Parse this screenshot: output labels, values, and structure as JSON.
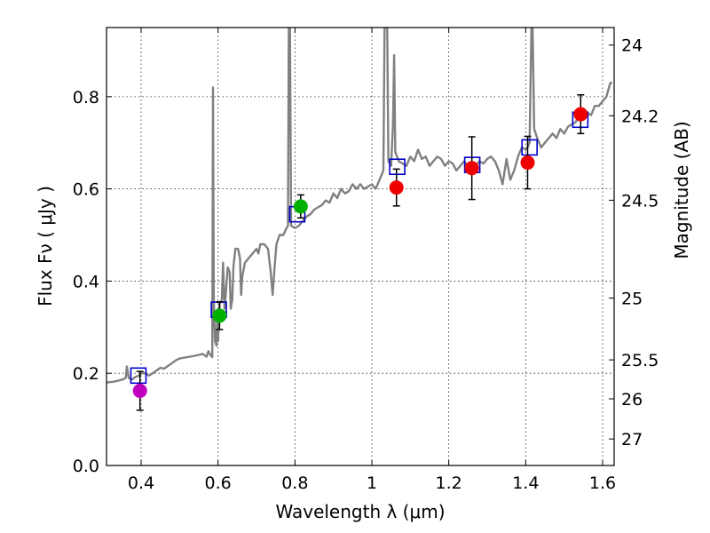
{
  "chart_data": {
    "type": "scatter",
    "xlabel": "Wavelength  λ (μm)",
    "ylabel": "Flux  Fν  ( μJy )",
    "y2label": "Magnitude (AB)",
    "xlim": [
      0.31,
      1.63
    ],
    "ylim": [
      0.0,
      0.95
    ],
    "grid": true,
    "x_ticks": [
      {
        "value": 0.4,
        "label": "0.4"
      },
      {
        "value": 0.6,
        "label": "0.6"
      },
      {
        "value": 0.8,
        "label": "0.8"
      },
      {
        "value": 1.0,
        "label": "1"
      },
      {
        "value": 1.2,
        "label": "1.2"
      },
      {
        "value": 1.4,
        "label": "1.4"
      },
      {
        "value": 1.6,
        "label": "1.6"
      }
    ],
    "y_ticks": [
      {
        "value": 0.0,
        "label": "0.0"
      },
      {
        "value": 0.2,
        "label": "0.2"
      },
      {
        "value": 0.4,
        "label": "0.4"
      },
      {
        "value": 0.6,
        "label": "0.6"
      },
      {
        "value": 0.8,
        "label": "0.8"
      }
    ],
    "y2_ticks": [
      {
        "value": 24,
        "label": "24"
      },
      {
        "value": 24.2,
        "label": "24.2"
      },
      {
        "value": 24.5,
        "label": "24.5"
      },
      {
        "value": 25,
        "label": "25"
      },
      {
        "value": 25.5,
        "label": "25.5"
      },
      {
        "value": 26,
        "label": "26"
      },
      {
        "value": 27,
        "label": "27"
      }
    ],
    "colors": {
      "model_spectrum": "#808080",
      "model_photometry": "#0000cc",
      "violet": "#bf00bf",
      "green": "#00b000",
      "red": "#ee0000",
      "errorbar": "#000000"
    },
    "model_spectrum": [
      [
        0.31,
        0.18
      ],
      [
        0.33,
        0.182
      ],
      [
        0.35,
        0.186
      ],
      [
        0.36,
        0.19
      ],
      [
        0.363,
        0.215
      ],
      [
        0.368,
        0.19
      ],
      [
        0.375,
        0.186
      ],
      [
        0.385,
        0.192
      ],
      [
        0.395,
        0.195
      ],
      [
        0.4,
        0.2
      ],
      [
        0.41,
        0.2
      ],
      [
        0.42,
        0.195
      ],
      [
        0.43,
        0.2
      ],
      [
        0.44,
        0.206
      ],
      [
        0.45,
        0.212
      ],
      [
        0.46,
        0.21
      ],
      [
        0.47,
        0.216
      ],
      [
        0.48,
        0.222
      ],
      [
        0.49,
        0.228
      ],
      [
        0.5,
        0.232
      ],
      [
        0.52,
        0.235
      ],
      [
        0.54,
        0.238
      ],
      [
        0.56,
        0.242
      ],
      [
        0.57,
        0.236
      ],
      [
        0.575,
        0.248
      ],
      [
        0.58,
        0.24
      ],
      [
        0.585,
        0.235
      ],
      [
        0.587,
        0.82
      ],
      [
        0.589,
        0.36
      ],
      [
        0.592,
        0.27
      ],
      [
        0.596,
        0.26
      ],
      [
        0.598,
        0.33
      ],
      [
        0.6,
        0.27
      ],
      [
        0.604,
        0.35
      ],
      [
        0.61,
        0.36
      ],
      [
        0.613,
        0.44
      ],
      [
        0.617,
        0.34
      ],
      [
        0.62,
        0.37
      ],
      [
        0.625,
        0.43
      ],
      [
        0.63,
        0.42
      ],
      [
        0.633,
        0.34
      ],
      [
        0.637,
        0.36
      ],
      [
        0.64,
        0.43
      ],
      [
        0.645,
        0.47
      ],
      [
        0.652,
        0.47
      ],
      [
        0.657,
        0.45
      ],
      [
        0.66,
        0.37
      ],
      [
        0.663,
        0.41
      ],
      [
        0.67,
        0.44
      ],
      [
        0.68,
        0.45
      ],
      [
        0.69,
        0.46
      ],
      [
        0.7,
        0.47
      ],
      [
        0.705,
        0.46
      ],
      [
        0.71,
        0.48
      ],
      [
        0.72,
        0.48
      ],
      [
        0.73,
        0.47
      ],
      [
        0.737,
        0.42
      ],
      [
        0.742,
        0.37
      ],
      [
        0.747,
        0.43
      ],
      [
        0.752,
        0.48
      ],
      [
        0.76,
        0.5
      ],
      [
        0.77,
        0.5
      ],
      [
        0.778,
        0.515
      ],
      [
        0.782,
        0.52
      ],
      [
        0.784,
        0.95
      ],
      [
        0.787,
        0.95
      ],
      [
        0.79,
        0.52
      ],
      [
        0.8,
        0.515
      ],
      [
        0.81,
        0.52
      ],
      [
        0.82,
        0.53
      ],
      [
        0.83,
        0.54
      ],
      [
        0.84,
        0.545
      ],
      [
        0.85,
        0.555
      ],
      [
        0.86,
        0.56
      ],
      [
        0.87,
        0.565
      ],
      [
        0.88,
        0.575
      ],
      [
        0.89,
        0.57
      ],
      [
        0.9,
        0.59
      ],
      [
        0.91,
        0.58
      ],
      [
        0.92,
        0.6
      ],
      [
        0.93,
        0.59
      ],
      [
        0.94,
        0.595
      ],
      [
        0.95,
        0.61
      ],
      [
        0.96,
        0.6
      ],
      [
        0.97,
        0.61
      ],
      [
        0.98,
        0.6
      ],
      [
        0.99,
        0.605
      ],
      [
        1.0,
        0.61
      ],
      [
        1.01,
        0.6
      ],
      [
        1.02,
        0.62
      ],
      [
        1.03,
        0.64
      ],
      [
        1.033,
        0.95
      ],
      [
        1.04,
        0.95
      ],
      [
        1.043,
        0.66
      ],
      [
        1.05,
        0.65
      ],
      [
        1.055,
        0.74
      ],
      [
        1.058,
        0.89
      ],
      [
        1.061,
        0.68
      ],
      [
        1.07,
        0.66
      ],
      [
        1.08,
        0.655
      ],
      [
        1.09,
        0.65
      ],
      [
        1.1,
        0.67
      ],
      [
        1.11,
        0.66
      ],
      [
        1.12,
        0.685
      ],
      [
        1.13,
        0.665
      ],
      [
        1.14,
        0.67
      ],
      [
        1.15,
        0.65
      ],
      [
        1.16,
        0.66
      ],
      [
        1.17,
        0.67
      ],
      [
        1.18,
        0.665
      ],
      [
        1.19,
        0.65
      ],
      [
        1.2,
        0.66
      ],
      [
        1.21,
        0.655
      ],
      [
        1.22,
        0.64
      ],
      [
        1.23,
        0.65
      ],
      [
        1.24,
        0.66
      ],
      [
        1.25,
        0.65
      ],
      [
        1.26,
        0.655
      ],
      [
        1.27,
        0.65
      ],
      [
        1.28,
        0.66
      ],
      [
        1.29,
        0.655
      ],
      [
        1.3,
        0.665
      ],
      [
        1.31,
        0.67
      ],
      [
        1.32,
        0.66
      ],
      [
        1.33,
        0.64
      ],
      [
        1.34,
        0.61
      ],
      [
        1.35,
        0.665
      ],
      [
        1.36,
        0.62
      ],
      [
        1.37,
        0.64
      ],
      [
        1.38,
        0.67
      ],
      [
        1.39,
        0.69
      ],
      [
        1.4,
        0.685
      ],
      [
        1.405,
        0.69
      ],
      [
        1.41,
        0.7
      ],
      [
        1.415,
        0.95
      ],
      [
        1.418,
        0.95
      ],
      [
        1.422,
        0.73
      ],
      [
        1.43,
        0.71
      ],
      [
        1.44,
        0.69
      ],
      [
        1.45,
        0.7
      ],
      [
        1.46,
        0.71
      ],
      [
        1.47,
        0.72
      ],
      [
        1.48,
        0.71
      ],
      [
        1.49,
        0.73
      ],
      [
        1.5,
        0.72
      ],
      [
        1.51,
        0.735
      ],
      [
        1.52,
        0.74
      ],
      [
        1.53,
        0.745
      ],
      [
        1.54,
        0.76
      ],
      [
        1.55,
        0.77
      ],
      [
        1.56,
        0.765
      ],
      [
        1.57,
        0.76
      ],
      [
        1.58,
        0.78
      ],
      [
        1.59,
        0.78
      ],
      [
        1.6,
        0.79
      ],
      [
        1.61,
        0.8
      ],
      [
        1.62,
        0.83
      ],
      [
        1.625,
        0.83
      ]
    ],
    "model_photometry": [
      {
        "x": 0.393,
        "y": 0.195
      },
      {
        "x": 0.602,
        "y": 0.338
      },
      {
        "x": 0.806,
        "y": 0.545
      },
      {
        "x": 1.066,
        "y": 0.648
      },
      {
        "x": 1.261,
        "y": 0.652
      },
      {
        "x": 1.41,
        "y": 0.69
      },
      {
        "x": 1.542,
        "y": 0.75
      }
    ],
    "observed": [
      {
        "x": 0.397,
        "y": 0.162,
        "err": 0.042,
        "color": "violet"
      },
      {
        "x": 0.604,
        "y": 0.325,
        "err": 0.03,
        "color": "green"
      },
      {
        "x": 0.815,
        "y": 0.562,
        "err": 0.025,
        "color": "green"
      },
      {
        "x": 1.064,
        "y": 0.603,
        "err": 0.04,
        "color": "red"
      },
      {
        "x": 1.26,
        "y": 0.645,
        "err": 0.068,
        "color": "red"
      },
      {
        "x": 1.405,
        "y": 0.657,
        "err": 0.057,
        "color": "red"
      },
      {
        "x": 1.543,
        "y": 0.762,
        "err": 0.042,
        "color": "red"
      }
    ]
  }
}
